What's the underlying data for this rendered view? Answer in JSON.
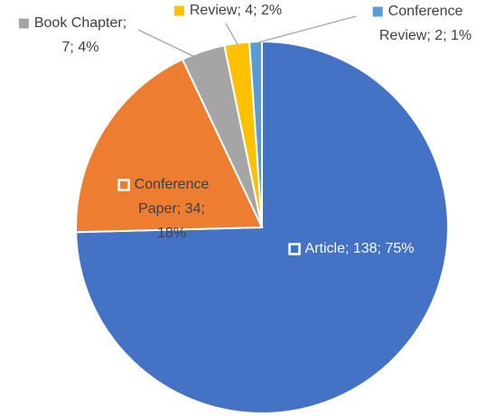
{
  "chart_data": {
    "type": "pie",
    "categories": [
      "Article",
      "Conference Paper",
      "Book Chapter",
      "Review",
      "Conference Review"
    ],
    "values": [
      138,
      34,
      7,
      4,
      2
    ],
    "value_labels": [
      "Article; 138; 75%",
      "Conference Paper; 34; 18%",
      "Book Chapter; 7; 4%",
      "Review; 4; 2%",
      "Conference Review; 2; 1%"
    ],
    "colors": [
      "#4472c4",
      "#ed7d31",
      "#a5a5a5",
      "#ffc000",
      "#5b9bd5"
    ]
  }
}
